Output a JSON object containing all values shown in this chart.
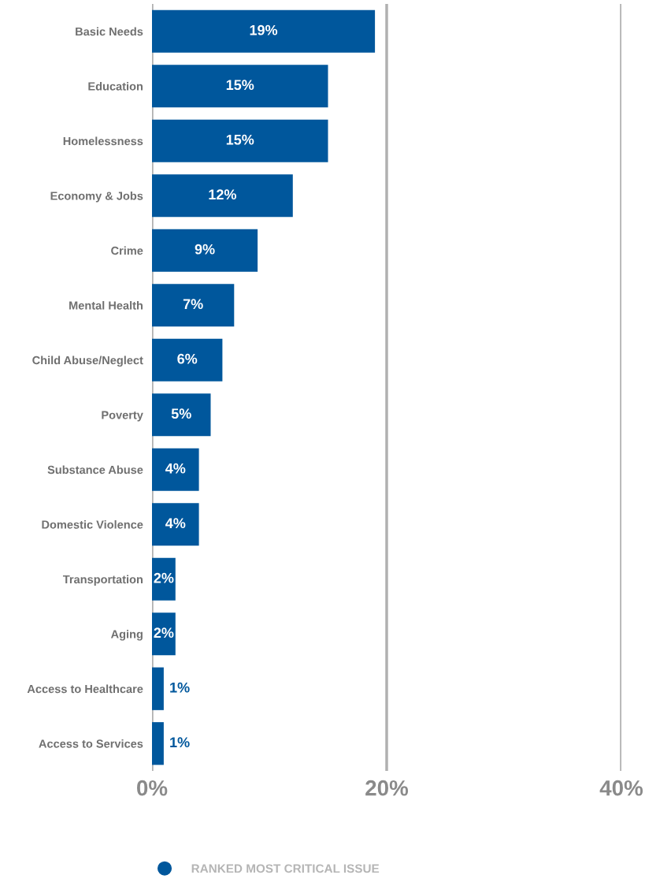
{
  "chart_data": {
    "type": "bar",
    "orientation": "horizontal",
    "categories": [
      "Basic Needs",
      "Education",
      "Homelessness",
      "Economy & Jobs",
      "Crime",
      "Mental Health",
      "Child Abuse/Neglect",
      "Poverty",
      "Substance Abuse",
      "Domestic Violence",
      "Transportation",
      "Aging",
      "Access to Healthcare",
      "Access to Services"
    ],
    "series": [
      {
        "name": "RANKED MOST CRITICAL ISSUE",
        "color": "#00579c",
        "values": [
          19,
          15,
          15,
          12,
          9,
          7,
          6,
          5,
          4,
          4,
          2,
          2,
          1,
          1
        ]
      }
    ],
    "xlim": [
      0,
      40
    ],
    "xticks": [
      {
        "value": 0,
        "label": "0%"
      },
      {
        "value": 20,
        "label": "20%"
      },
      {
        "value": 40,
        "label": "40%"
      }
    ],
    "value_labels": [
      "19%",
      "15%",
      "15%",
      "12%",
      "9%",
      "7%",
      "6%",
      "5%",
      "4%",
      "4%",
      "2%",
      "2%",
      "1%",
      "1%"
    ],
    "grid": "x",
    "legend": "bottom"
  }
}
